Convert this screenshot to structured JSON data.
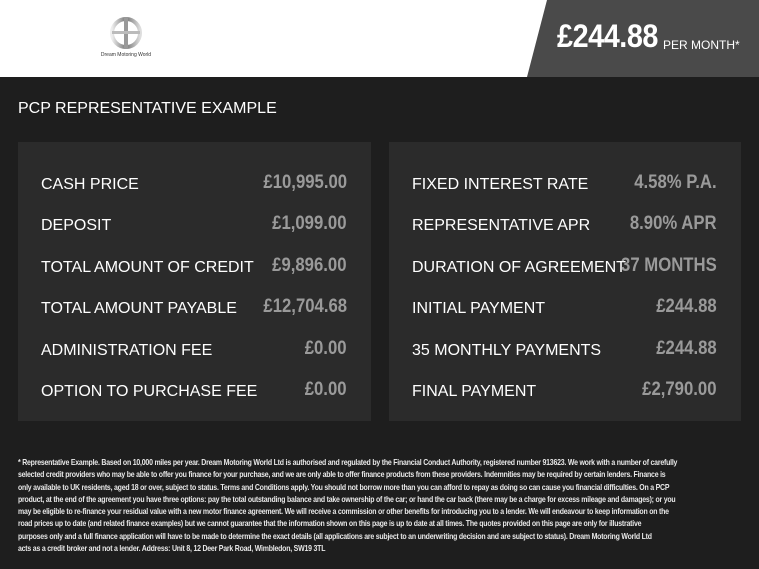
{
  "header": {
    "logo_text": "Dream Motoring World",
    "price": "£244.88",
    "per_month": "PER MONTH*",
    "colors": {
      "price_box": "#4a4a4a",
      "background": "#1e1e1e",
      "panel": "#2b2b2b"
    }
  },
  "title": "PCP REPRESENTATIVE EXAMPLE",
  "left": [
    {
      "label": "CASH PRICE",
      "value": "£10,995.00"
    },
    {
      "label": "DEPOSIT",
      "value": "£1,099.00"
    },
    {
      "label": "TOTAL AMOUNT OF CREDIT",
      "value": "£9,896.00"
    },
    {
      "label": "TOTAL AMOUNT PAYABLE",
      "value": "£12,704.68"
    },
    {
      "label": "ADMINISTRATION FEE",
      "value": "£0.00"
    },
    {
      "label": "OPTION TO PURCHASE FEE",
      "value": "£0.00"
    }
  ],
  "right": [
    {
      "label": "FIXED INTEREST RATE",
      "value": "4.58% P.A."
    },
    {
      "label": "REPRESENTATIVE APR",
      "value": "8.90% APR"
    },
    {
      "label": "DURATION OF AGREEMENT",
      "value": "37 MONTHS"
    },
    {
      "label": "INITIAL PAYMENT",
      "value": "£244.88"
    },
    {
      "label": "35 MONTHLY PAYMENTS",
      "value": "£244.88"
    },
    {
      "label": "FINAL PAYMENT",
      "value": "£2,790.00"
    }
  ],
  "footnote": [
    "* Representative Example. Based on 10,000 miles per year. Dream Motoring World Ltd is authorised and regulated by the Financial Conduct Authority, registered number 913623. We work with a number of carefully",
    "selected credit providers who may be able to offer you finance for your purchase, and we are only able to offer finance products from these providers. Indemnities may be required by certain lenders. Finance is",
    "only available to UK residents, aged 18 or over, subject to status. Terms and Conditions apply. You should not borrow more than you can afford to repay as doing so can cause you financial difficulties. On a PCP",
    "product, at the end of the agreement you have three options: pay the total outstanding balance and take ownership of the car; or hand the car back (there may be a charge for excess mileage and damages); or you",
    "may be eligible to re-finance your residual value with a new motor finance agreement. We will receive a commission or other benefits for introducing you to a lender. We will endeavour to keep information on the",
    "road prices up to date (and related finance examples) but we cannot guarantee that the information shown on this page is up to date at all times. The quotes provided on this page are only for illustrative",
    "purposes only and a full finance application will have to be made to determine the exact details (all applications are subject to an underwriting decision and are subject to status). Dream Motoring World Ltd",
    "acts as a credit broker and not a lender. Address: Unit 8, 12 Deer Park Road, Wimbledon, SW19 3TL"
  ]
}
